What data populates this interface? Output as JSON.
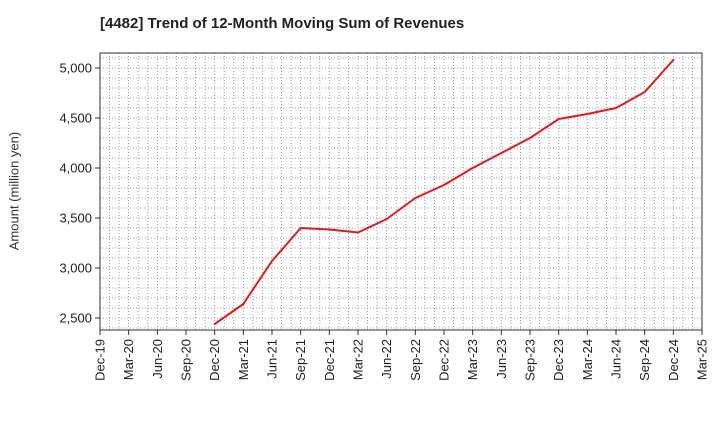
{
  "chart_data": {
    "type": "line",
    "title": "[4482]  Trend of 12-Month Moving Sum of Revenues",
    "xlabel": "",
    "ylabel": "Amount (million yen)",
    "categories": [
      "Dec-19",
      "Mar-20",
      "Jun-20",
      "Sep-20",
      "Dec-20",
      "Mar-21",
      "Jun-21",
      "Sep-21",
      "Dec-21",
      "Mar-22",
      "Jun-22",
      "Sep-22",
      "Dec-22",
      "Mar-23",
      "Jun-23",
      "Sep-23",
      "Dec-23",
      "Mar-24",
      "Jun-24",
      "Sep-24",
      "Dec-24",
      "Mar-25"
    ],
    "y_ticks": [
      2500,
      3000,
      3500,
      4000,
      4500,
      5000
    ],
    "y_tick_labels": [
      "2,500",
      "3,000",
      "3,500",
      "4,000",
      "4,500",
      "5,000"
    ],
    "ylim": [
      2380,
      5150
    ],
    "grid": true,
    "series": [
      {
        "color": "#e31a1c",
        "values": [
          null,
          null,
          null,
          null,
          2440,
          2640,
          3070,
          3400,
          3385,
          3355,
          3490,
          3700,
          3830,
          4000,
          4150,
          4300,
          4490,
          4540,
          4600,
          4760,
          5080,
          null
        ]
      }
    ]
  }
}
